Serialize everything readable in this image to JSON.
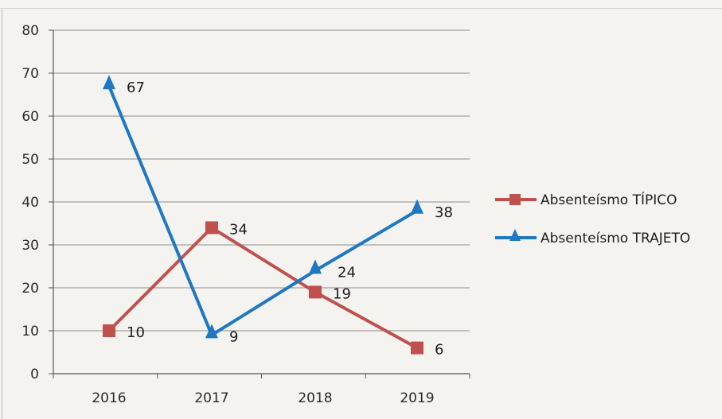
{
  "chart_data": {
    "type": "line",
    "categories": [
      "2016",
      "2017",
      "2018",
      "2019"
    ],
    "ylim": [
      0,
      80
    ],
    "yticks": [
      0,
      10,
      20,
      30,
      40,
      50,
      60,
      70,
      80
    ],
    "grid": true,
    "legend_position": "right",
    "series": [
      {
        "name": "Absenteísmo TÍPICO",
        "values": [
          10,
          34,
          19,
          6
        ],
        "color": "#c0504d",
        "marker": "square"
      },
      {
        "name": "Absenteísmo  TRAJETO",
        "values": [
          67,
          9,
          24,
          38
        ],
        "color": "#1f78c1",
        "marker": "triangle"
      }
    ]
  }
}
